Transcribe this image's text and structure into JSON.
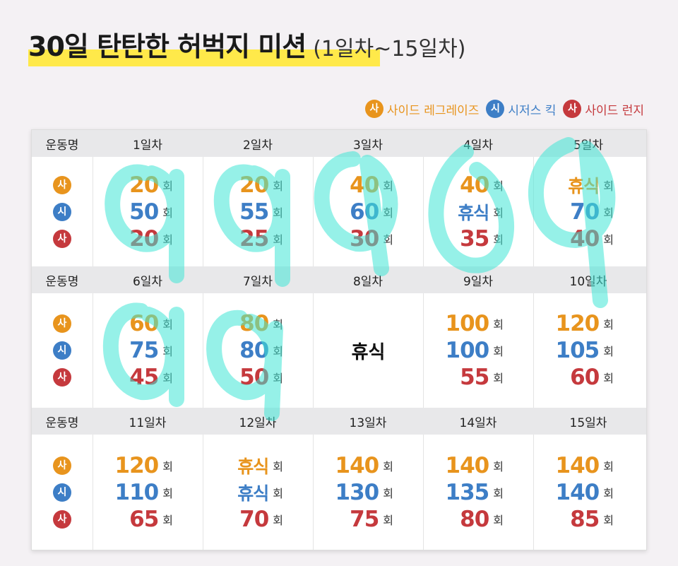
{
  "title": {
    "main": "30일 탄탄한 허벅지 미션",
    "sub": "(1일차~15일차)"
  },
  "legend": [
    {
      "glyph": "사",
      "label": "사이드 레그레이즈",
      "color": "#e8941d"
    },
    {
      "glyph": "시",
      "label": "시저스 킥",
      "color": "#3d7ec6"
    },
    {
      "glyph": "사",
      "label": "사이드 런지",
      "color": "#c5393d"
    }
  ],
  "exercise_header": "운동명",
  "unit": "회",
  "rest_text": "휴식",
  "rows": [
    {
      "days": [
        {
          "label": "1일차",
          "values": [
            "20",
            "50",
            "20"
          ]
        },
        {
          "label": "2일차",
          "values": [
            "20",
            "55",
            "25"
          ]
        },
        {
          "label": "3일차",
          "values": [
            "40",
            "60",
            "30"
          ]
        },
        {
          "label": "4일차",
          "values": [
            "40",
            "휴식",
            "35"
          ]
        },
        {
          "label": "5일차",
          "values": [
            "휴식",
            "70",
            "40"
          ]
        }
      ]
    },
    {
      "days": [
        {
          "label": "6일차",
          "values": [
            "60",
            "75",
            "45"
          ]
        },
        {
          "label": "7일차",
          "values": [
            "80",
            "80",
            "50"
          ]
        },
        {
          "label": "8일차",
          "rest": true
        },
        {
          "label": "9일차",
          "values": [
            "100",
            "100",
            "55"
          ]
        },
        {
          "label": "10일차",
          "values": [
            "120",
            "105",
            "60"
          ]
        }
      ]
    },
    {
      "days": [
        {
          "label": "11일차",
          "values": [
            "120",
            "110",
            "65"
          ]
        },
        {
          "label": "12일차",
          "values": [
            "휴식",
            "휴식",
            "70"
          ]
        },
        {
          "label": "13일차",
          "values": [
            "140",
            "130",
            "75"
          ]
        },
        {
          "label": "14일차",
          "values": [
            "140",
            "135",
            "80"
          ]
        },
        {
          "label": "15일차",
          "values": [
            "140",
            "140",
            "85"
          ]
        }
      ]
    }
  ]
}
